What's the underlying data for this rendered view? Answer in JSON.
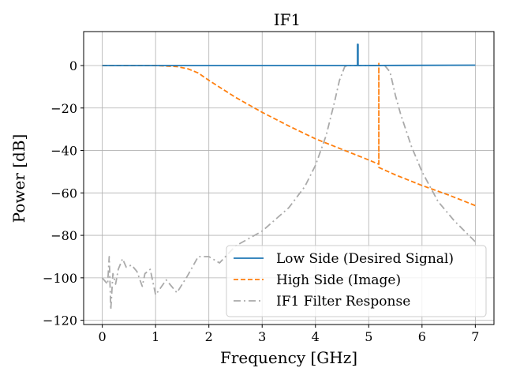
{
  "chart_data": {
    "type": "line",
    "title": "IF1",
    "xlabel": "Frequency [GHz]",
    "ylabel": "Power [dB]",
    "xlim": [
      -0.35,
      7.35
    ],
    "ylim": [
      -122,
      16
    ],
    "xticks": [
      0,
      1,
      2,
      3,
      4,
      5,
      6,
      7
    ],
    "yticks": [
      0,
      -20,
      -40,
      -60,
      -80,
      -100,
      -120
    ],
    "xtick_labels": [
      "0",
      "1",
      "2",
      "3",
      "4",
      "5",
      "6",
      "7"
    ],
    "ytick_labels": [
      "0",
      "−20",
      "−40",
      "−60",
      "−80",
      "−100",
      "−120"
    ],
    "grid": true,
    "legend": "lower-right",
    "series": [
      {
        "name": "Low Side (Desired Signal)",
        "color": "#1f77b4",
        "style": "solid",
        "x": [
          0,
          4.79,
          4.79,
          4.8,
          4.8,
          7
        ],
        "y": [
          0,
          0,
          10,
          10,
          0,
          0.2
        ]
      },
      {
        "name": "High Side (Image)",
        "color": "#ff7f0e",
        "style": "dashed",
        "x": [
          0,
          0.5,
          1.0,
          1.4,
          1.6,
          1.8,
          2.0,
          2.5,
          3.0,
          3.5,
          4.0,
          4.5,
          5.0,
          5.19,
          5.19,
          5.19,
          5.5,
          6.0,
          6.5,
          7.0
        ],
        "y": [
          0,
          0,
          0,
          -0.5,
          -1.5,
          -3.5,
          -7,
          -15,
          -22,
          -28.5,
          -34.5,
          -39.5,
          -44.5,
          -46.5,
          1,
          -48,
          -51.5,
          -56.5,
          -61,
          -66
        ]
      },
      {
        "name": "IF1 Filter Response",
        "color": "#aaaaaa",
        "style": "dashdot",
        "x": [
          0,
          0.1,
          0.13,
          0.16,
          0.2,
          0.25,
          0.3,
          0.38,
          0.45,
          0.55,
          0.65,
          0.75,
          0.8,
          0.9,
          1.0,
          1.2,
          1.4,
          1.6,
          1.8,
          2.0,
          2.2,
          2.5,
          3.0,
          3.5,
          3.8,
          4.0,
          4.2,
          4.35,
          4.45,
          4.55,
          4.6,
          4.7,
          4.8,
          4.9,
          5.0,
          5.1,
          5.2,
          5.3,
          5.4,
          5.5,
          5.6,
          5.8,
          6.0,
          6.3,
          6.6,
          7.0
        ],
        "y": [
          -100,
          -103,
          -90,
          -115,
          -98,
          -103,
          -96,
          -91,
          -95,
          -94,
          -97,
          -104,
          -98,
          -96,
          -108,
          -101,
          -107,
          -99,
          -90,
          -90,
          -93,
          -85,
          -78,
          -67,
          -57,
          -47,
          -33,
          -18,
          -7,
          -0.5,
          0,
          0,
          0,
          0,
          0,
          0,
          0,
          0,
          -3,
          -14,
          -23,
          -38,
          -50,
          -64,
          -73,
          -83
        ]
      }
    ]
  }
}
